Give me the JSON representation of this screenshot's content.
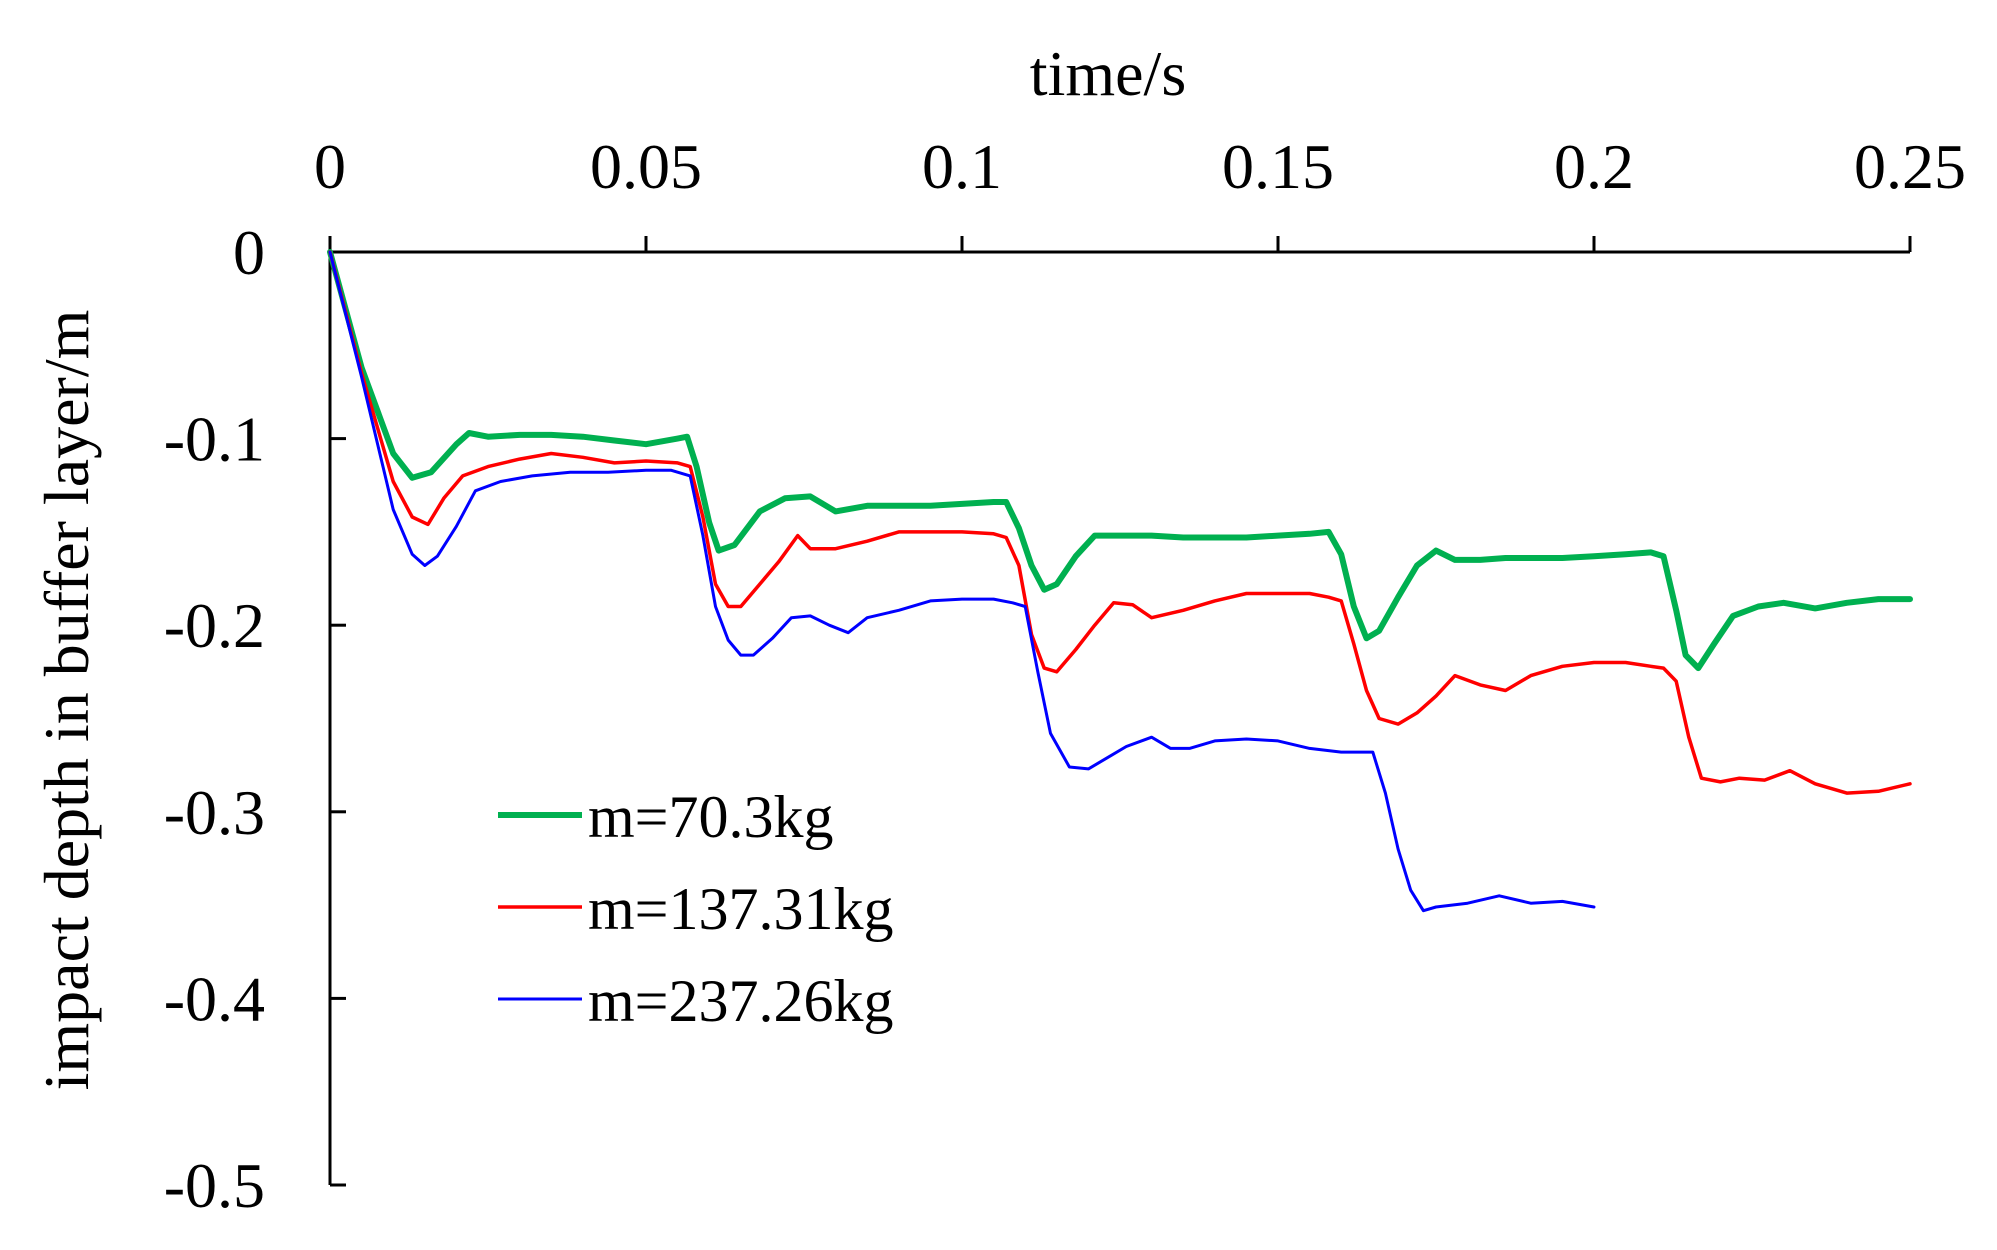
{
  "chart_data": {
    "type": "line",
    "xlabel": "time/s",
    "ylabel": "impact depth in buffer layer/m",
    "xlim": [
      0,
      0.25
    ],
    "ylim": [
      -0.5,
      0
    ],
    "x_ticks": [
      "0",
      "0.05",
      "0.1",
      "0.15",
      "0.2",
      "0.25"
    ],
    "y_ticks": [
      "0",
      "-0.1",
      "-0.2",
      "-0.3",
      "-0.4",
      "-0.5"
    ],
    "x_axis_position": "top",
    "grid": false,
    "legend_position": "bottom-left",
    "series": [
      {
        "name": "m=70.3kg",
        "color": "#00b050",
        "x": [
          0,
          0.005,
          0.01,
          0.013,
          0.016,
          0.02,
          0.022,
          0.025,
          0.03,
          0.035,
          0.04,
          0.045,
          0.05,
          0.055,
          0.0565,
          0.058,
          0.06,
          0.0615,
          0.064,
          0.068,
          0.072,
          0.076,
          0.08,
          0.085,
          0.09,
          0.095,
          0.1,
          0.105,
          0.107,
          0.109,
          0.111,
          0.113,
          0.115,
          0.118,
          0.121,
          0.125,
          0.13,
          0.135,
          0.14,
          0.145,
          0.15,
          0.155,
          0.158,
          0.16,
          0.162,
          0.164,
          0.166,
          0.169,
          0.172,
          0.175,
          0.178,
          0.182,
          0.186,
          0.19,
          0.195,
          0.2,
          0.205,
          0.209,
          0.211,
          0.213,
          0.2145,
          0.2165,
          0.219,
          0.222,
          0.226,
          0.23,
          0.235,
          0.24,
          0.245,
          0.25
        ],
        "y": [
          0,
          -0.062,
          -0.108,
          -0.121,
          -0.118,
          -0.103,
          -0.097,
          -0.099,
          -0.098,
          -0.098,
          -0.099,
          -0.101,
          -0.103,
          -0.1,
          -0.099,
          -0.115,
          -0.145,
          -0.16,
          -0.157,
          -0.139,
          -0.132,
          -0.131,
          -0.139,
          -0.136,
          -0.136,
          -0.136,
          -0.135,
          -0.134,
          -0.134,
          -0.148,
          -0.168,
          -0.181,
          -0.178,
          -0.163,
          -0.152,
          -0.152,
          -0.152,
          -0.153,
          -0.153,
          -0.153,
          -0.152,
          -0.151,
          -0.15,
          -0.162,
          -0.19,
          -0.207,
          -0.203,
          -0.185,
          -0.168,
          -0.16,
          -0.165,
          -0.165,
          -0.164,
          -0.164,
          -0.164,
          -0.163,
          -0.162,
          -0.161,
          -0.163,
          -0.192,
          -0.216,
          -0.223,
          -0.21,
          -0.195,
          -0.19,
          -0.188,
          -0.191,
          -0.188,
          -0.186,
          -0.186
        ]
      },
      {
        "name": "m=137.31kg",
        "color": "#ff0000",
        "x": [
          0,
          0.005,
          0.01,
          0.013,
          0.0155,
          0.018,
          0.021,
          0.025,
          0.03,
          0.035,
          0.04,
          0.045,
          0.05,
          0.055,
          0.057,
          0.059,
          0.061,
          0.063,
          0.065,
          0.068,
          0.071,
          0.074,
          0.076,
          0.08,
          0.085,
          0.09,
          0.095,
          0.1,
          0.105,
          0.107,
          0.109,
          0.111,
          0.113,
          0.115,
          0.118,
          0.121,
          0.124,
          0.127,
          0.13,
          0.135,
          0.14,
          0.145,
          0.15,
          0.155,
          0.158,
          0.16,
          0.162,
          0.164,
          0.166,
          0.169,
          0.172,
          0.175,
          0.178,
          0.182,
          0.186,
          0.19,
          0.195,
          0.2,
          0.205,
          0.209,
          0.211,
          0.213,
          0.215,
          0.217,
          0.22,
          0.223,
          0.227,
          0.231,
          0.235,
          0.24,
          0.245,
          0.25
        ],
        "y": [
          0,
          -0.065,
          -0.123,
          -0.142,
          -0.146,
          -0.132,
          -0.12,
          -0.115,
          -0.111,
          -0.108,
          -0.11,
          -0.113,
          -0.112,
          -0.113,
          -0.115,
          -0.142,
          -0.178,
          -0.19,
          -0.19,
          -0.178,
          -0.166,
          -0.152,
          -0.159,
          -0.159,
          -0.155,
          -0.15,
          -0.15,
          -0.15,
          -0.151,
          -0.153,
          -0.168,
          -0.205,
          -0.223,
          -0.225,
          -0.213,
          -0.2,
          -0.188,
          -0.189,
          -0.196,
          -0.192,
          -0.187,
          -0.183,
          -0.183,
          -0.183,
          -0.185,
          -0.187,
          -0.21,
          -0.235,
          -0.25,
          -0.253,
          -0.247,
          -0.238,
          -0.227,
          -0.232,
          -0.235,
          -0.227,
          -0.222,
          -0.22,
          -0.22,
          -0.222,
          -0.223,
          -0.23,
          -0.26,
          -0.282,
          -0.284,
          -0.282,
          -0.283,
          -0.278,
          -0.285,
          -0.29,
          -0.289,
          -0.285
        ]
      },
      {
        "name": "m=237.26kg",
        "color": "#0000ff",
        "x": [
          0,
          0.005,
          0.01,
          0.013,
          0.015,
          0.017,
          0.02,
          0.023,
          0.027,
          0.032,
          0.038,
          0.044,
          0.05,
          0.054,
          0.057,
          0.059,
          0.061,
          0.063,
          0.065,
          0.067,
          0.07,
          0.073,
          0.076,
          0.079,
          0.082,
          0.085,
          0.09,
          0.095,
          0.1,
          0.105,
          0.108,
          0.11,
          0.112,
          0.114,
          0.117,
          0.12,
          0.123,
          0.126,
          0.13,
          0.133,
          0.136,
          0.14,
          0.145,
          0.15,
          0.155,
          0.16,
          0.163,
          0.165,
          0.167,
          0.169,
          0.171,
          0.173,
          0.175,
          0.18,
          0.185,
          0.19,
          0.195,
          0.2
        ],
        "y": [
          0,
          -0.067,
          -0.138,
          -0.162,
          -0.168,
          -0.163,
          -0.147,
          -0.128,
          -0.123,
          -0.12,
          -0.118,
          -0.118,
          -0.117,
          -0.117,
          -0.12,
          -0.152,
          -0.19,
          -0.208,
          -0.216,
          -0.216,
          -0.207,
          -0.196,
          -0.195,
          -0.2,
          -0.204,
          -0.196,
          -0.192,
          -0.187,
          -0.186,
          -0.186,
          -0.188,
          -0.19,
          -0.225,
          -0.258,
          -0.276,
          -0.277,
          -0.271,
          -0.265,
          -0.26,
          -0.266,
          -0.266,
          -0.262,
          -0.261,
          -0.262,
          -0.266,
          -0.268,
          -0.268,
          -0.268,
          -0.29,
          -0.32,
          -0.342,
          -0.353,
          -0.351,
          -0.349,
          -0.345,
          -0.349,
          -0.348,
          -0.351
        ]
      }
    ]
  }
}
